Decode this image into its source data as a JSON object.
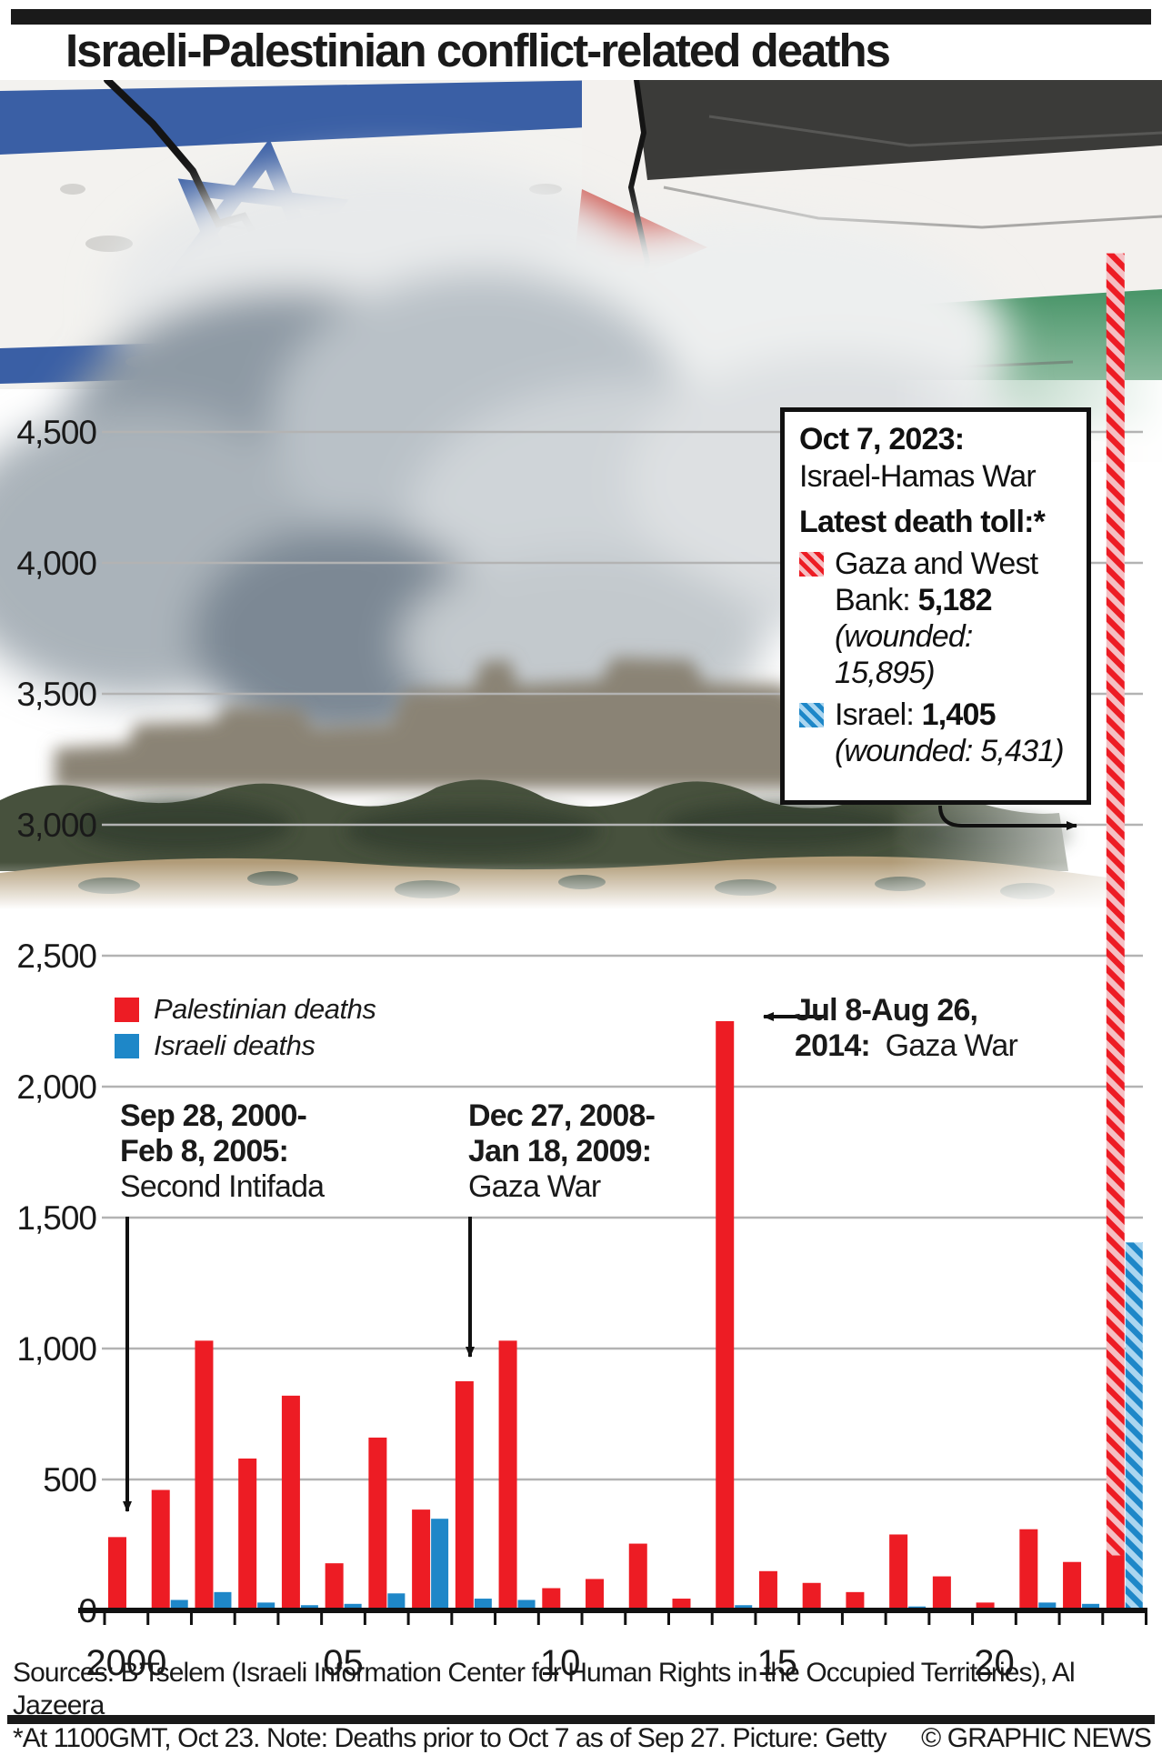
{
  "header": {
    "title": "Israeli-Palestinian conflict-related deaths"
  },
  "colors": {
    "palestinian_red": "#ed1c24",
    "israeli_blue": "#1e87c8",
    "red_hatch_light": "#f5bfc3",
    "blue_hatch_light": "#abd6f0",
    "grid_gray": "#b3b3b3",
    "axis_black": "#111111"
  },
  "legend": {
    "items": [
      {
        "label": "Palestinian deaths",
        "color": "#ed1c24"
      },
      {
        "label": "Israeli deaths",
        "color": "#1e87c8"
      }
    ]
  },
  "chart_data": {
    "type": "bar",
    "title": "Israeli-Palestinian conflict-related deaths",
    "x": [
      2000,
      2001,
      2002,
      2003,
      2004,
      2005,
      2006,
      2007,
      2008,
      2009,
      2010,
      2011,
      2012,
      2013,
      2014,
      2015,
      2016,
      2017,
      2018,
      2019,
      2020,
      2021,
      2022,
      2023
    ],
    "xtick_years": [
      2000,
      2005,
      2010,
      2015,
      2020
    ],
    "xtick_labels": [
      "2000",
      "05",
      "10",
      "15",
      "20"
    ],
    "ylim": [
      0,
      4500
    ],
    "yticks": [
      0,
      500,
      1000,
      1500,
      2000,
      2500,
      3000,
      3500,
      4000,
      4500
    ],
    "ytick_labels": [
      "0",
      "500",
      "1,000",
      "1,500",
      "2,000",
      "2,500",
      "3,000",
      "3,500",
      "4,000",
      "4,500"
    ],
    "grid": true,
    "legend_position": "inside-left",
    "series": [
      {
        "name": "Palestinian deaths",
        "color": "#ed1c24",
        "values": [
          280,
          460,
          1030,
          580,
          820,
          180,
          660,
          385,
          875,
          1030,
          85,
          120,
          255,
          45,
          2250,
          150,
          105,
          70,
          290,
          130,
          30,
          310,
          185,
          5182
        ]
      },
      {
        "name": "Israeli deaths",
        "color": "#1e87c8",
        "values": [
          10,
          40,
          70,
          30,
          20,
          25,
          65,
          350,
          45,
          40,
          5,
          10,
          10,
          5,
          20,
          10,
          5,
          5,
          15,
          10,
          5,
          30,
          25,
          1405
        ]
      }
    ],
    "hatched_2023": {
      "year": 2023,
      "palestinian_total": 5182,
      "palestinian_solid_pre_oct7": 210,
      "israeli_total": 1405,
      "note": "2023 bars drawn hatched; solid red portion = deaths prior to Oct 7"
    }
  },
  "annotations": {
    "intifada": {
      "l1": "Sep 28, 2000-",
      "l2": "Feb 8, 2005:",
      "l3": "Second Intifada"
    },
    "gaza09": {
      "l1": "Dec 27, 2008-",
      "l2": "Jan 18, 2009:",
      "l3": "Gaza War"
    },
    "gaza14": {
      "l1": "Jul 8-Aug 26,",
      "l2_bold": "2014:",
      "l2_rest": "Gaza War"
    }
  },
  "info_box": {
    "date": "Oct 7, 2023:",
    "event": "Israel-Hamas War",
    "toll_label": "Latest death toll:*",
    "gaza_pre": "Gaza and West Bank: ",
    "gaza_value": "5,182",
    "gaza_wounded": "(wounded: 15,895)",
    "israel_pre": "Israel: ",
    "israel_value": "1,405",
    "israel_wounded": "(wounded: 5,431)"
  },
  "source": {
    "line1": "Sources: B’Tselem (Israeli Information Center for Human Rights in the Occupied Territories), Al Jazeera",
    "line2": "*At 1100GMT, Oct 23. Note: Deaths prior to Oct 7 as of Sep 27. Picture: Getty",
    "credit": "© GRAPHIC NEWS"
  }
}
